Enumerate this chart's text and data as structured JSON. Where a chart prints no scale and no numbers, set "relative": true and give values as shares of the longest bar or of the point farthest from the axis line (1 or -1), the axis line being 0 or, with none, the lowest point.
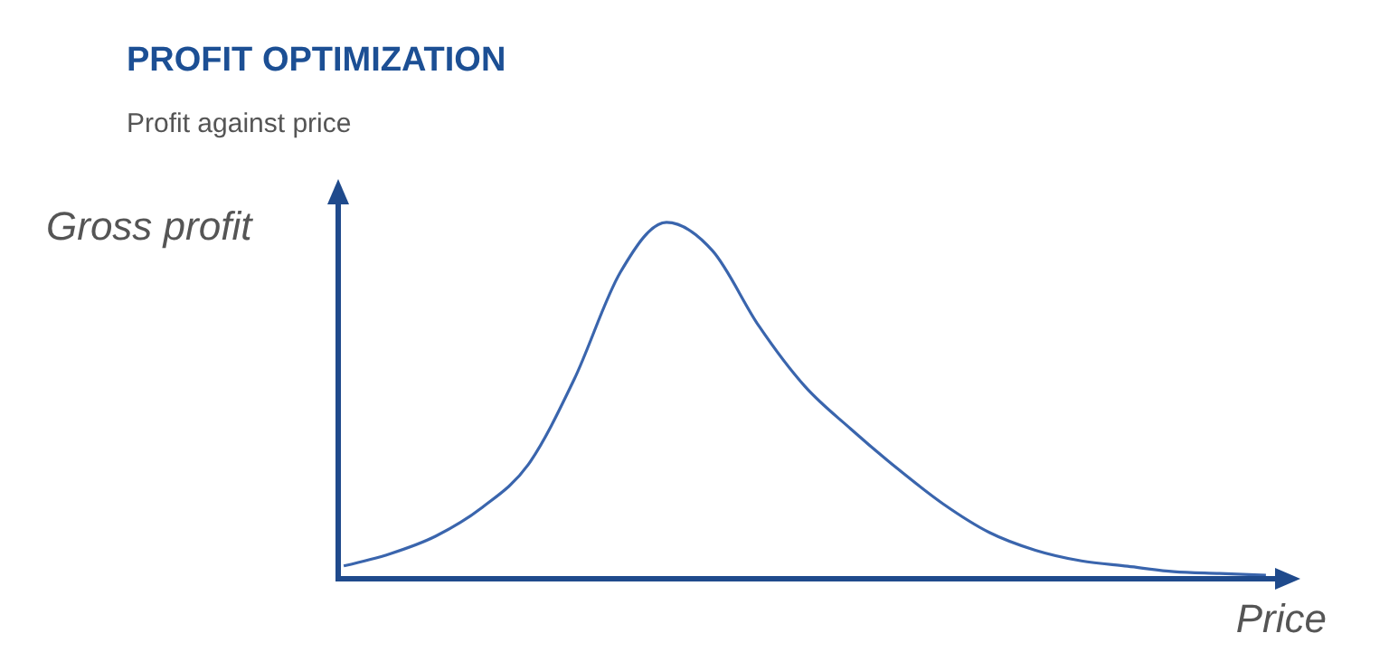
{
  "chart_data": {
    "type": "line",
    "title": "PROFIT OPTIMIZATION",
    "subtitle": "Profit against price",
    "xlabel": "Price",
    "ylabel": "Gross profit",
    "relative": true,
    "tick_labels": false,
    "marker": "none",
    "categories": [
      null,
      null,
      null,
      null,
      null,
      null,
      null,
      null,
      null,
      null,
      null,
      null,
      null,
      null,
      null,
      null,
      null,
      null,
      null,
      null,
      null
    ],
    "series": [
      {
        "color": "#3a65ad",
        "values": [
          0.036,
          0.07,
          0.12,
          0.2,
          0.32,
          0.56,
          0.86,
          1,
          0.92,
          0.71,
          0.54,
          0.42,
          0.31,
          0.21,
          0.13,
          0.08,
          0.05,
          0.035,
          0.02,
          0.015,
          0.01
        ]
      }
    ]
  }
}
